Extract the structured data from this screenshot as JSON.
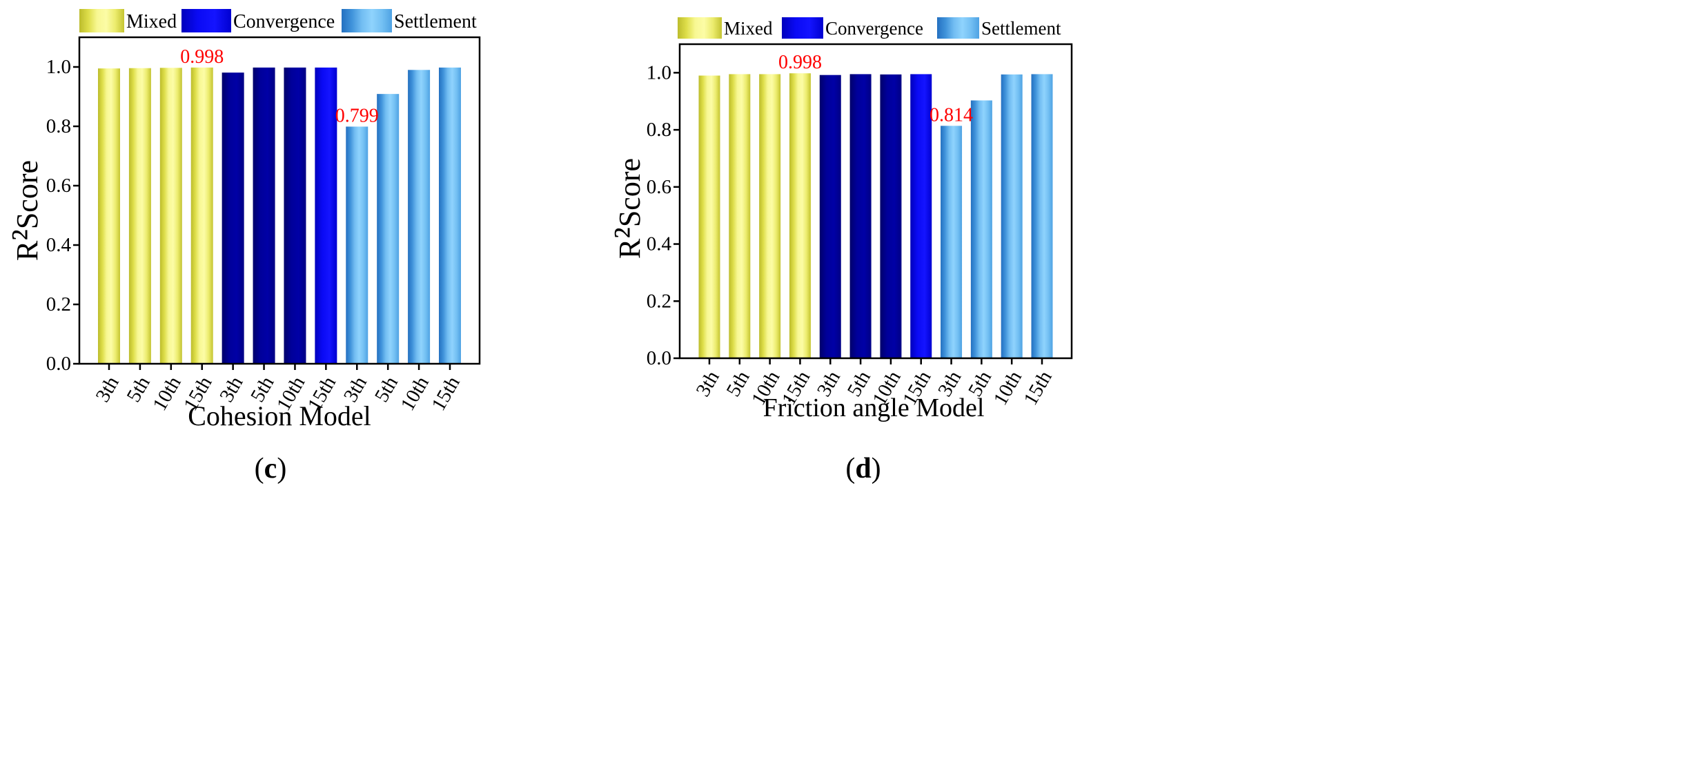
{
  "palette": {
    "gradients": {
      "#e6e660": [
        "#bcbc2c",
        "#dede4a",
        "#f8f894",
        "#fcfca6",
        "#ecec6e",
        "#c4c432"
      ],
      "#000090": [
        "#00006a",
        "#00009a",
        "#0000a6",
        "#000084"
      ],
      "#0000e6": [
        "#0000bc",
        "#0a0af4",
        "#1414ff",
        "#0000d0"
      ],
      "#5aaee8": [
        "#2470c0",
        "#3f92da",
        "#72bdf2",
        "#8fd3fd",
        "#74c0f3",
        "#4ea2e3"
      ]
    },
    "annotation": "#ff0000",
    "axis": "#000000"
  },
  "chart_data": [
    {
      "type": "bar",
      "panel_label": "(c)",
      "xlabel": "Cohesion Model",
      "ylabel": "R²Score",
      "ylim": [
        0,
        1.1
      ],
      "yticks": [
        "0.0",
        "0.2",
        "0.4",
        "0.6",
        "0.8",
        "1.0"
      ],
      "categories": [
        "3th",
        "5th",
        "10th",
        "15th"
      ],
      "series": [
        {
          "name": "Mixed",
          "color": "#e6e660",
          "bar_colors": [
            "#e6e660",
            "#e6e660",
            "#e6e660",
            "#e6e660"
          ],
          "values": [
            0.995,
            0.996,
            0.997,
            0.998
          ]
        },
        {
          "name": "Convergence",
          "color": "#0000e6",
          "bar_colors": [
            "#000090",
            "#000090",
            "#000090",
            "#0000e6"
          ],
          "values": [
            0.981,
            0.998,
            0.998,
            0.998
          ]
        },
        {
          "name": "Settlement",
          "color": "#5aaee8",
          "bar_colors": [
            "#5aaee8",
            "#5aaee8",
            "#5aaee8",
            "#5aaee8"
          ],
          "values": [
            0.799,
            0.909,
            0.99,
            0.998
          ]
        }
      ],
      "annotations": [
        {
          "text": "0.998",
          "series": 0,
          "index": 3
        },
        {
          "text": "0.799",
          "series": 2,
          "index": 0
        }
      ]
    },
    {
      "type": "bar",
      "panel_label": "(d)",
      "xlabel": "Friction angle Model",
      "ylabel": "R²Score",
      "ylim": [
        0,
        1.1
      ],
      "yticks": [
        "0.0",
        "0.2",
        "0.4",
        "0.6",
        "0.8",
        "1.0"
      ],
      "categories": [
        "3th",
        "5th",
        "10th",
        "15th"
      ],
      "series": [
        {
          "name": "Mixed",
          "color": "#e6e660",
          "bar_colors": [
            "#e6e660",
            "#e6e660",
            "#e6e660",
            "#e6e660"
          ],
          "values": [
            0.99,
            0.995,
            0.995,
            0.998
          ]
        },
        {
          "name": "Convergence",
          "color": "#0000e6",
          "bar_colors": [
            "#000090",
            "#000090",
            "#000090",
            "#0000e6"
          ],
          "values": [
            0.992,
            0.995,
            0.994,
            0.995
          ]
        },
        {
          "name": "Settlement",
          "color": "#5aaee8",
          "bar_colors": [
            "#5aaee8",
            "#5aaee8",
            "#5aaee8",
            "#5aaee8"
          ],
          "values": [
            0.814,
            0.903,
            0.994,
            0.995
          ]
        }
      ],
      "annotations": [
        {
          "text": "0.998",
          "series": 0,
          "index": 3
        },
        {
          "text": "0.814",
          "series": 2,
          "index": 0
        }
      ]
    }
  ]
}
